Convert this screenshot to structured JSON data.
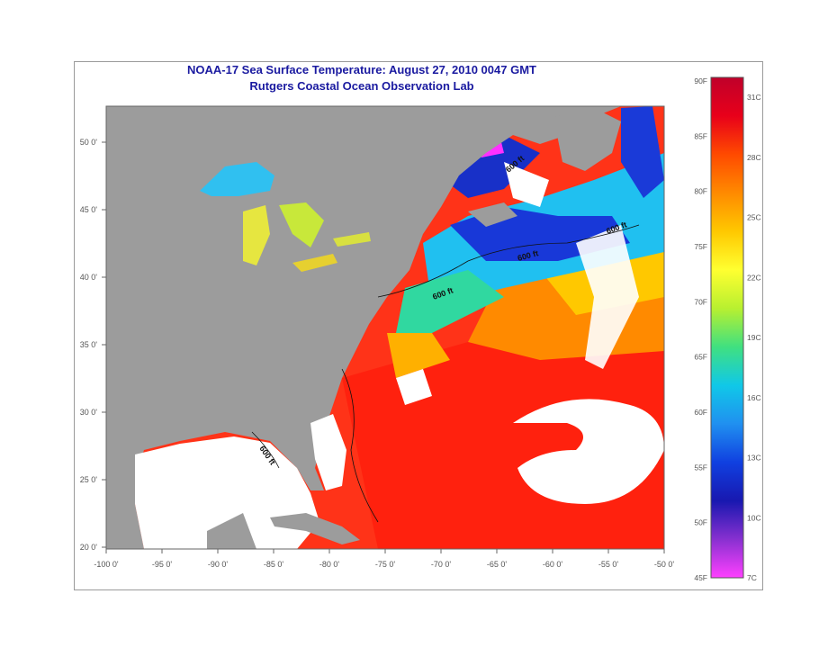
{
  "header": {
    "title": "NOAA-17 Sea Surface Temperature:  August 27, 2010 0047 GMT",
    "subtitle": "Rutgers Coastal Ocean Observation Lab"
  },
  "map": {
    "lon_ticks": [
      "-100 0'",
      "-95 0'",
      "-90 0'",
      "-85 0'",
      "-80 0'",
      "-75 0'",
      "-70 0'",
      "-65 0'",
      "-60 0'",
      "-55 0'",
      "-50 0'"
    ],
    "lat_ticks": [
      "20 0'",
      "25 0'",
      "30 0'",
      "35 0'",
      "40 0'",
      "45 0'",
      "50 0'"
    ],
    "isobath_labels": [
      "600 ft",
      "600 ft",
      "600 ft",
      "600 ft",
      "600 ft"
    ]
  },
  "colorbar": {
    "f_labels": [
      "90F",
      "85F",
      "80F",
      "75F",
      "70F",
      "65F",
      "60F",
      "55F",
      "50F",
      "45F"
    ],
    "c_labels": [
      "31C",
      "28C",
      "25C",
      "22C",
      "19C",
      "16C",
      "13C",
      "10C",
      "7C"
    ],
    "colors": [
      "#c0002a",
      "#e8001a",
      "#ff4a00",
      "#ff8a00",
      "#ffc800",
      "#ffff30",
      "#b8f030",
      "#40e080",
      "#10c8e8",
      "#2090f0",
      "#1040e0",
      "#1818b0",
      "#8830d0",
      "#ff40ff"
    ]
  },
  "colors": {
    "land": "#9c9c9c",
    "warm": "#ff2a10",
    "gulf": "#ffffff",
    "title": "#1a1aa0"
  }
}
